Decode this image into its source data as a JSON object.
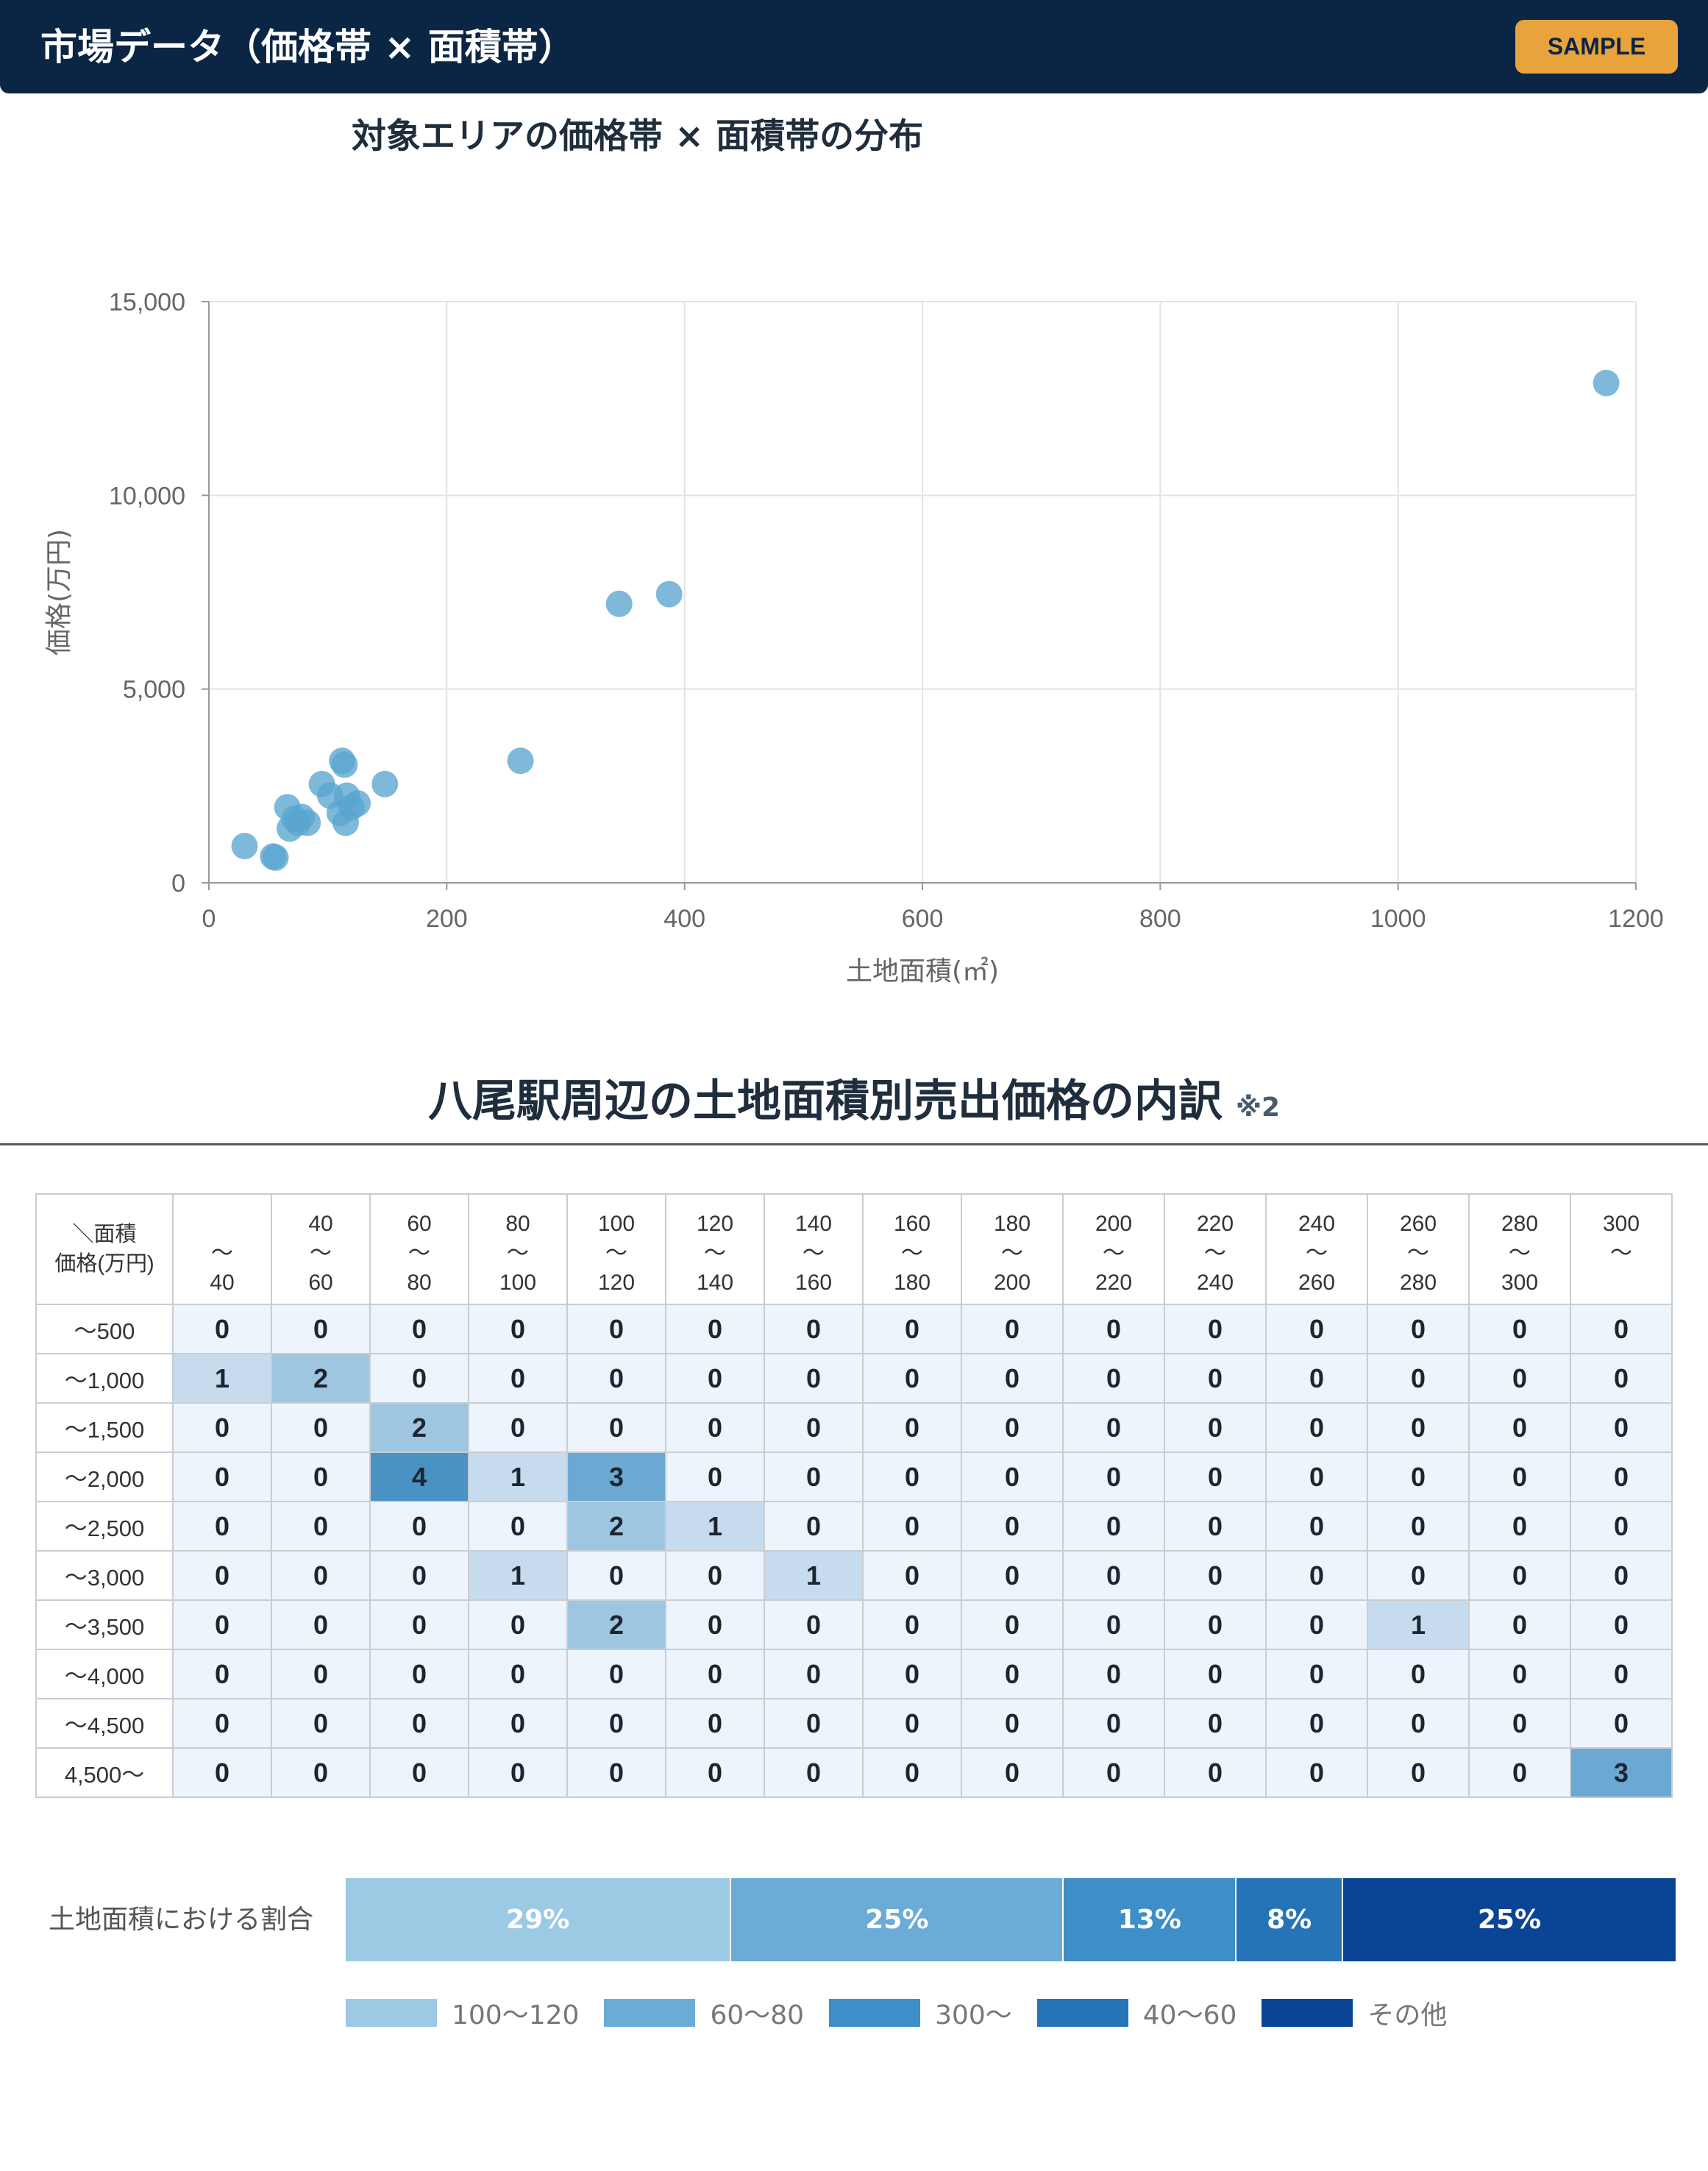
{
  "header": {
    "title": "市場データ（価格帯 × 面積帯）",
    "badge": "SAMPLE"
  },
  "chart_data": [
    {
      "type": "scatter",
      "title": "対象エリアの価格帯 × 面積帯の分布",
      "xlabel": "土地面積(㎡)",
      "ylabel": "価格(万円)",
      "xlim": [
        0,
        1200
      ],
      "ylim": [
        0,
        15000
      ],
      "xticks": [
        "0",
        "200",
        "400",
        "600",
        "800",
        "1000",
        "1200"
      ],
      "yticks": [
        "0",
        "5,000",
        "10,000",
        "15,000"
      ],
      "grid": true,
      "color": "#5aa5cf",
      "points": [
        {
          "x": 30,
          "y": 950
        },
        {
          "x": 54,
          "y": 680
        },
        {
          "x": 56,
          "y": 650
        },
        {
          "x": 66,
          "y": 1950
        },
        {
          "x": 68,
          "y": 1400
        },
        {
          "x": 72,
          "y": 1650
        },
        {
          "x": 75,
          "y": 1550
        },
        {
          "x": 78,
          "y": 1700
        },
        {
          "x": 83,
          "y": 1550
        },
        {
          "x": 95,
          "y": 2550
        },
        {
          "x": 102,
          "y": 2250
        },
        {
          "x": 110,
          "y": 1800
        },
        {
          "x": 112,
          "y": 3150
        },
        {
          "x": 114,
          "y": 3050
        },
        {
          "x": 115,
          "y": 1550
        },
        {
          "x": 116,
          "y": 2250
        },
        {
          "x": 120,
          "y": 1950
        },
        {
          "x": 125,
          "y": 2050
        },
        {
          "x": 148,
          "y": 2550
        },
        {
          "x": 262,
          "y": 3150
        },
        {
          "x": 345,
          "y": 7200
        },
        {
          "x": 387,
          "y": 7450
        },
        {
          "x": 1175,
          "y": 12900
        }
      ]
    },
    {
      "type": "heatmap",
      "title": "八尾駅周辺の土地面積別売出価格の内訳",
      "note": "※2",
      "corner": [
        "＼面積",
        "価格(万円)"
      ],
      "columns": [
        [
          "",
          "〜",
          "40"
        ],
        [
          "40",
          "〜",
          "60"
        ],
        [
          "60",
          "〜",
          "80"
        ],
        [
          "80",
          "〜",
          "100"
        ],
        [
          "100",
          "〜",
          "120"
        ],
        [
          "120",
          "〜",
          "140"
        ],
        [
          "140",
          "〜",
          "160"
        ],
        [
          "160",
          "〜",
          "180"
        ],
        [
          "180",
          "〜",
          "200"
        ],
        [
          "200",
          "〜",
          "220"
        ],
        [
          "220",
          "〜",
          "240"
        ],
        [
          "240",
          "〜",
          "260"
        ],
        [
          "260",
          "〜",
          "280"
        ],
        [
          "280",
          "〜",
          "300"
        ],
        [
          "300",
          "〜",
          ""
        ]
      ],
      "rows": [
        "〜500",
        "〜1,000",
        "〜1,500",
        "〜2,000",
        "〜2,500",
        "〜3,000",
        "〜3,500",
        "〜4,000",
        "〜4,500",
        "4,500〜"
      ],
      "values": [
        [
          0,
          0,
          0,
          0,
          0,
          0,
          0,
          0,
          0,
          0,
          0,
          0,
          0,
          0,
          0
        ],
        [
          1,
          2,
          0,
          0,
          0,
          0,
          0,
          0,
          0,
          0,
          0,
          0,
          0,
          0,
          0
        ],
        [
          0,
          0,
          2,
          0,
          0,
          0,
          0,
          0,
          0,
          0,
          0,
          0,
          0,
          0,
          0
        ],
        [
          0,
          0,
          4,
          1,
          3,
          0,
          0,
          0,
          0,
          0,
          0,
          0,
          0,
          0,
          0
        ],
        [
          0,
          0,
          0,
          0,
          2,
          1,
          0,
          0,
          0,
          0,
          0,
          0,
          0,
          0,
          0
        ],
        [
          0,
          0,
          0,
          1,
          0,
          0,
          1,
          0,
          0,
          0,
          0,
          0,
          0,
          0,
          0
        ],
        [
          0,
          0,
          0,
          0,
          2,
          0,
          0,
          0,
          0,
          0,
          0,
          0,
          1,
          0,
          0
        ],
        [
          0,
          0,
          0,
          0,
          0,
          0,
          0,
          0,
          0,
          0,
          0,
          0,
          0,
          0,
          0
        ],
        [
          0,
          0,
          0,
          0,
          0,
          0,
          0,
          0,
          0,
          0,
          0,
          0,
          0,
          0,
          0
        ],
        [
          0,
          0,
          0,
          0,
          0,
          0,
          0,
          0,
          0,
          0,
          0,
          0,
          0,
          0,
          3
        ]
      ],
      "colors": {
        "0": "#eef4fb",
        "1": "#c6dcee",
        "2": "#9ec6e1",
        "3": "#6ba8d2",
        "4": "#4a91c4"
      }
    },
    {
      "type": "bar",
      "stacked": true,
      "orientation": "horizontal",
      "label": "土地面積における割合",
      "segments": [
        {
          "name": "100〜120",
          "value": 29,
          "label": "29%",
          "color": "#9ccae4"
        },
        {
          "name": "60〜80",
          "value": 25,
          "label": "25%",
          "color": "#6aacd6"
        },
        {
          "name": "300〜",
          "value": 13,
          "label": "13%",
          "color": "#3e8fc7"
        },
        {
          "name": "40〜60",
          "value": 8,
          "label": "8%",
          "color": "#2674b7"
        },
        {
          "name": "その他",
          "value": 25,
          "label": "25%",
          "color": "#0a4595"
        }
      ]
    }
  ]
}
